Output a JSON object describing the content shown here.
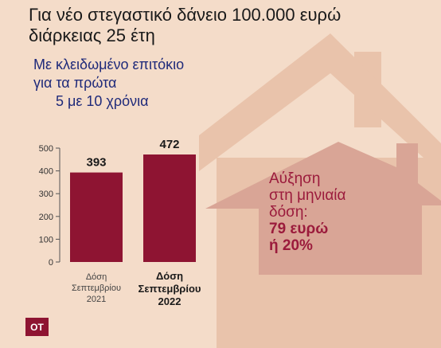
{
  "header": {
    "title_line1": "Για νέο στεγαστικό δάνειο 100.000 ευρώ",
    "title_line2": "διάρκειας 25 έτη",
    "subtitle_line1": "Με κλειδωμένο επιτόκιο",
    "subtitle_line2": "για τα πρώτα",
    "subtitle_line3": "5 με 10 χρόνια"
  },
  "callout": {
    "line1": "Αύξηση",
    "line2": "στη μηνιαία",
    "line3": "δόση:",
    "line4": "79 ευρώ",
    "line5": "ή 20%"
  },
  "logo": {
    "text": "ΟΤ"
  },
  "colors": {
    "background": "#f4dcc9",
    "house": "#e9c3ab",
    "house_roof": "#d9a596",
    "bar": "#8e1432",
    "axis_text": "#333333"
  },
  "chart_data": {
    "type": "bar",
    "categories": [
      [
        "Δόση",
        "Σεπτεμβρίου",
        "2021"
      ],
      [
        "Δόση",
        "Σεπτεμβρίου",
        "2022"
      ]
    ],
    "category_bold": [
      false,
      true
    ],
    "values": [
      393,
      472
    ],
    "data_labels": [
      "393",
      "472"
    ],
    "yticks": [
      "0",
      "100",
      "200",
      "300",
      "400",
      "500"
    ],
    "ylim": [
      0,
      500
    ],
    "grid": false
  }
}
